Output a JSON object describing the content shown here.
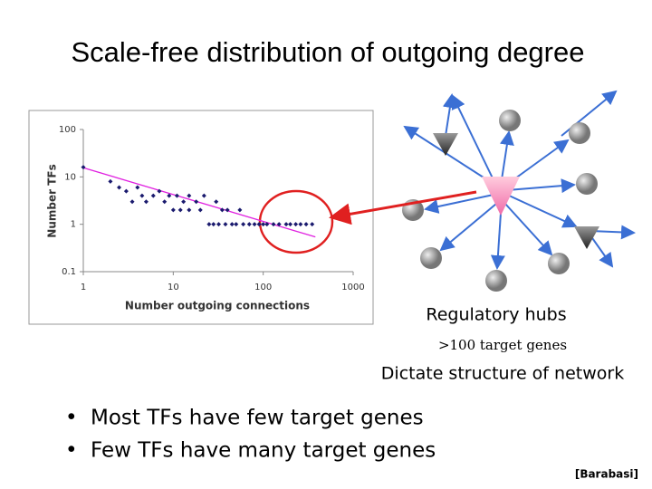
{
  "title": "Scale-free distribution of outgoing degree",
  "chart_data": {
    "type": "scatter",
    "x_label": "Number outgoing connections",
    "y_label": "Number TFs",
    "log_x": true,
    "log_y": true,
    "xlim": [
      1,
      1000
    ],
    "ylim": [
      0.1,
      100
    ],
    "xticks": [
      1,
      10,
      100,
      1000
    ],
    "yticks": [
      0.1,
      1,
      10,
      100
    ],
    "points": {
      "color": "#1a1a6e",
      "x": [
        1,
        2,
        2.5,
        3,
        3.5,
        4,
        4.5,
        5,
        6,
        7,
        8,
        9,
        10,
        11,
        12,
        13,
        15,
        15,
        18,
        20,
        22,
        25,
        28,
        30,
        32,
        35,
        38,
        40,
        45,
        50,
        55,
        60,
        70,
        80,
        90,
        100,
        110,
        130,
        150,
        180,
        200,
        230,
        260,
        300,
        350
      ],
      "y": [
        16,
        8,
        6,
        5,
        3,
        6,
        4,
        3,
        4,
        5,
        3,
        4,
        2,
        4,
        2,
        3,
        2,
        4,
        3,
        2,
        4,
        1,
        1,
        3,
        1,
        2,
        1,
        2,
        1,
        1,
        2,
        1,
        1,
        1,
        1,
        1,
        1,
        1,
        1,
        1,
        1,
        1,
        1,
        1,
        1
      ]
    },
    "trendline": {
      "color": "#e020e0",
      "x": [
        1,
        380
      ],
      "y": [
        15.6,
        0.54
      ]
    }
  },
  "diagram": {
    "hub_label": "Regulatory hubs",
    "hub_note": ">100 target genes",
    "caption": "Dictate structure of network"
  },
  "bullets": [
    "Most TFs have few target genes",
    "Few TFs have many target genes"
  ],
  "citation": "[Barabasi]"
}
